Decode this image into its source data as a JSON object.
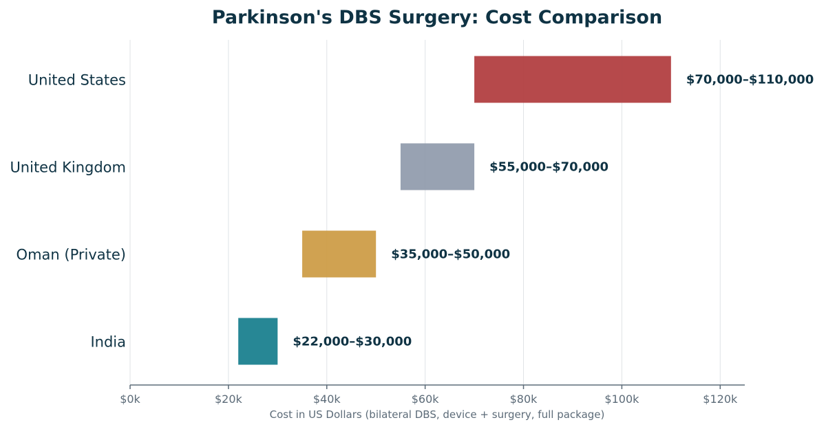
{
  "chart_data": {
    "type": "bar",
    "orientation": "horizontal",
    "title": "Parkinson's DBS Surgery: Cost Comparison",
    "xlabel": "Cost in US Dollars (bilateral DBS, device + surgery, full package)",
    "ylabel": "",
    "xlim": [
      0,
      125000
    ],
    "xticks": [
      0,
      20000,
      40000,
      60000,
      80000,
      100000,
      120000
    ],
    "xtick_labels": [
      "$0k",
      "$20k",
      "$40k",
      "$60k",
      "$80k",
      "$100k",
      "$120k"
    ],
    "grid": true,
    "categories": [
      "United States",
      "United Kingdom",
      "Oman (Private)",
      "India"
    ],
    "ranges": [
      {
        "low": 70000,
        "high": 110000,
        "label": "$70,000–$110,000",
        "color": "#b03a3c"
      },
      {
        "low": 55000,
        "high": 70000,
        "label": "$55,000–$70,000",
        "color": "#8f9aab"
      },
      {
        "low": 35000,
        "high": 50000,
        "label": "$35,000–$50,000",
        "color": "#cc9a42"
      },
      {
        "low": 22000,
        "high": 30000,
        "label": "$22,000–$30,000",
        "color": "#157d8c"
      }
    ]
  }
}
